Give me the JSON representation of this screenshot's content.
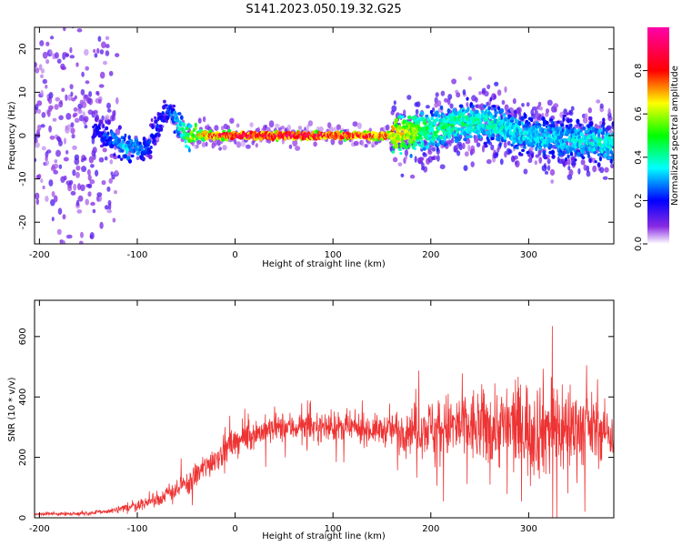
{
  "title": "S141.2023.050.19.32.G25",
  "chart_data": [
    {
      "type": "heatmap",
      "title": "S141.2023.050.19.32.G25",
      "xlabel": "Height of straight line (km)",
      "ylabel": "Frequency (Hz)",
      "xlim": [
        -205,
        387
      ],
      "ylim": [
        -25,
        25
      ],
      "x_ticks": [
        -200,
        -100,
        0,
        100,
        200,
        300
      ],
      "y_ticks": [
        -20,
        -10,
        0,
        10,
        20
      ],
      "colorbar": {
        "label": "Normalized spectral amplitude",
        "range": [
          0.0,
          1.0
        ],
        "ticks": [
          "0.0",
          "0.2",
          "0.4",
          "0.6",
          "0.8"
        ],
        "colormap": [
          "#ffffff",
          "#8a2be2",
          "#0000ff",
          "#00ffff",
          "#00ff00",
          "#ffff00",
          "#ff0000",
          "#ff00ff"
        ]
      },
      "ridge": {
        "description_points_x": [
          -140,
          -110,
          -90,
          -70,
          -50,
          -30,
          0,
          50,
          100,
          150,
          200,
          230,
          260,
          300,
          340,
          387
        ],
        "frequency_center_hz": [
          1,
          -3,
          -3,
          6,
          0,
          0,
          0,
          0,
          0,
          0,
          1,
          3,
          3,
          0,
          -1,
          -2
        ],
        "peak_amplitude": [
          0.2,
          0.35,
          0.25,
          0.2,
          0.5,
          0.8,
          0.95,
          0.95,
          0.9,
          0.85,
          0.45,
          0.45,
          0.4,
          0.35,
          0.35,
          0.4
        ]
      }
    },
    {
      "type": "line",
      "xlabel": "Height of straight line (km)",
      "ylabel": "SNR (10 * v/v)",
      "xlim": [
        -205,
        387
      ],
      "ylim": [
        0,
        720
      ],
      "x_ticks": [
        -200,
        -100,
        0,
        100,
        200,
        300
      ],
      "y_ticks": [
        0,
        200,
        400,
        600
      ],
      "series": [
        {
          "color": "#ee3333",
          "envelope_x": [
            -205,
            -150,
            -120,
            -80,
            -50,
            -20,
            0,
            20,
            50,
            100,
            150,
            200,
            230,
            270,
            300,
            330,
            360,
            387
          ],
          "envelope_mean": [
            12,
            15,
            25,
            60,
            110,
            200,
            250,
            280,
            300,
            300,
            290,
            300,
            300,
            300,
            300,
            300,
            300,
            280
          ],
          "envelope_spread": [
            6,
            8,
            15,
            30,
            50,
            60,
            60,
            60,
            60,
            60,
            60,
            120,
            150,
            170,
            200,
            220,
            150,
            100
          ]
        }
      ]
    }
  ]
}
